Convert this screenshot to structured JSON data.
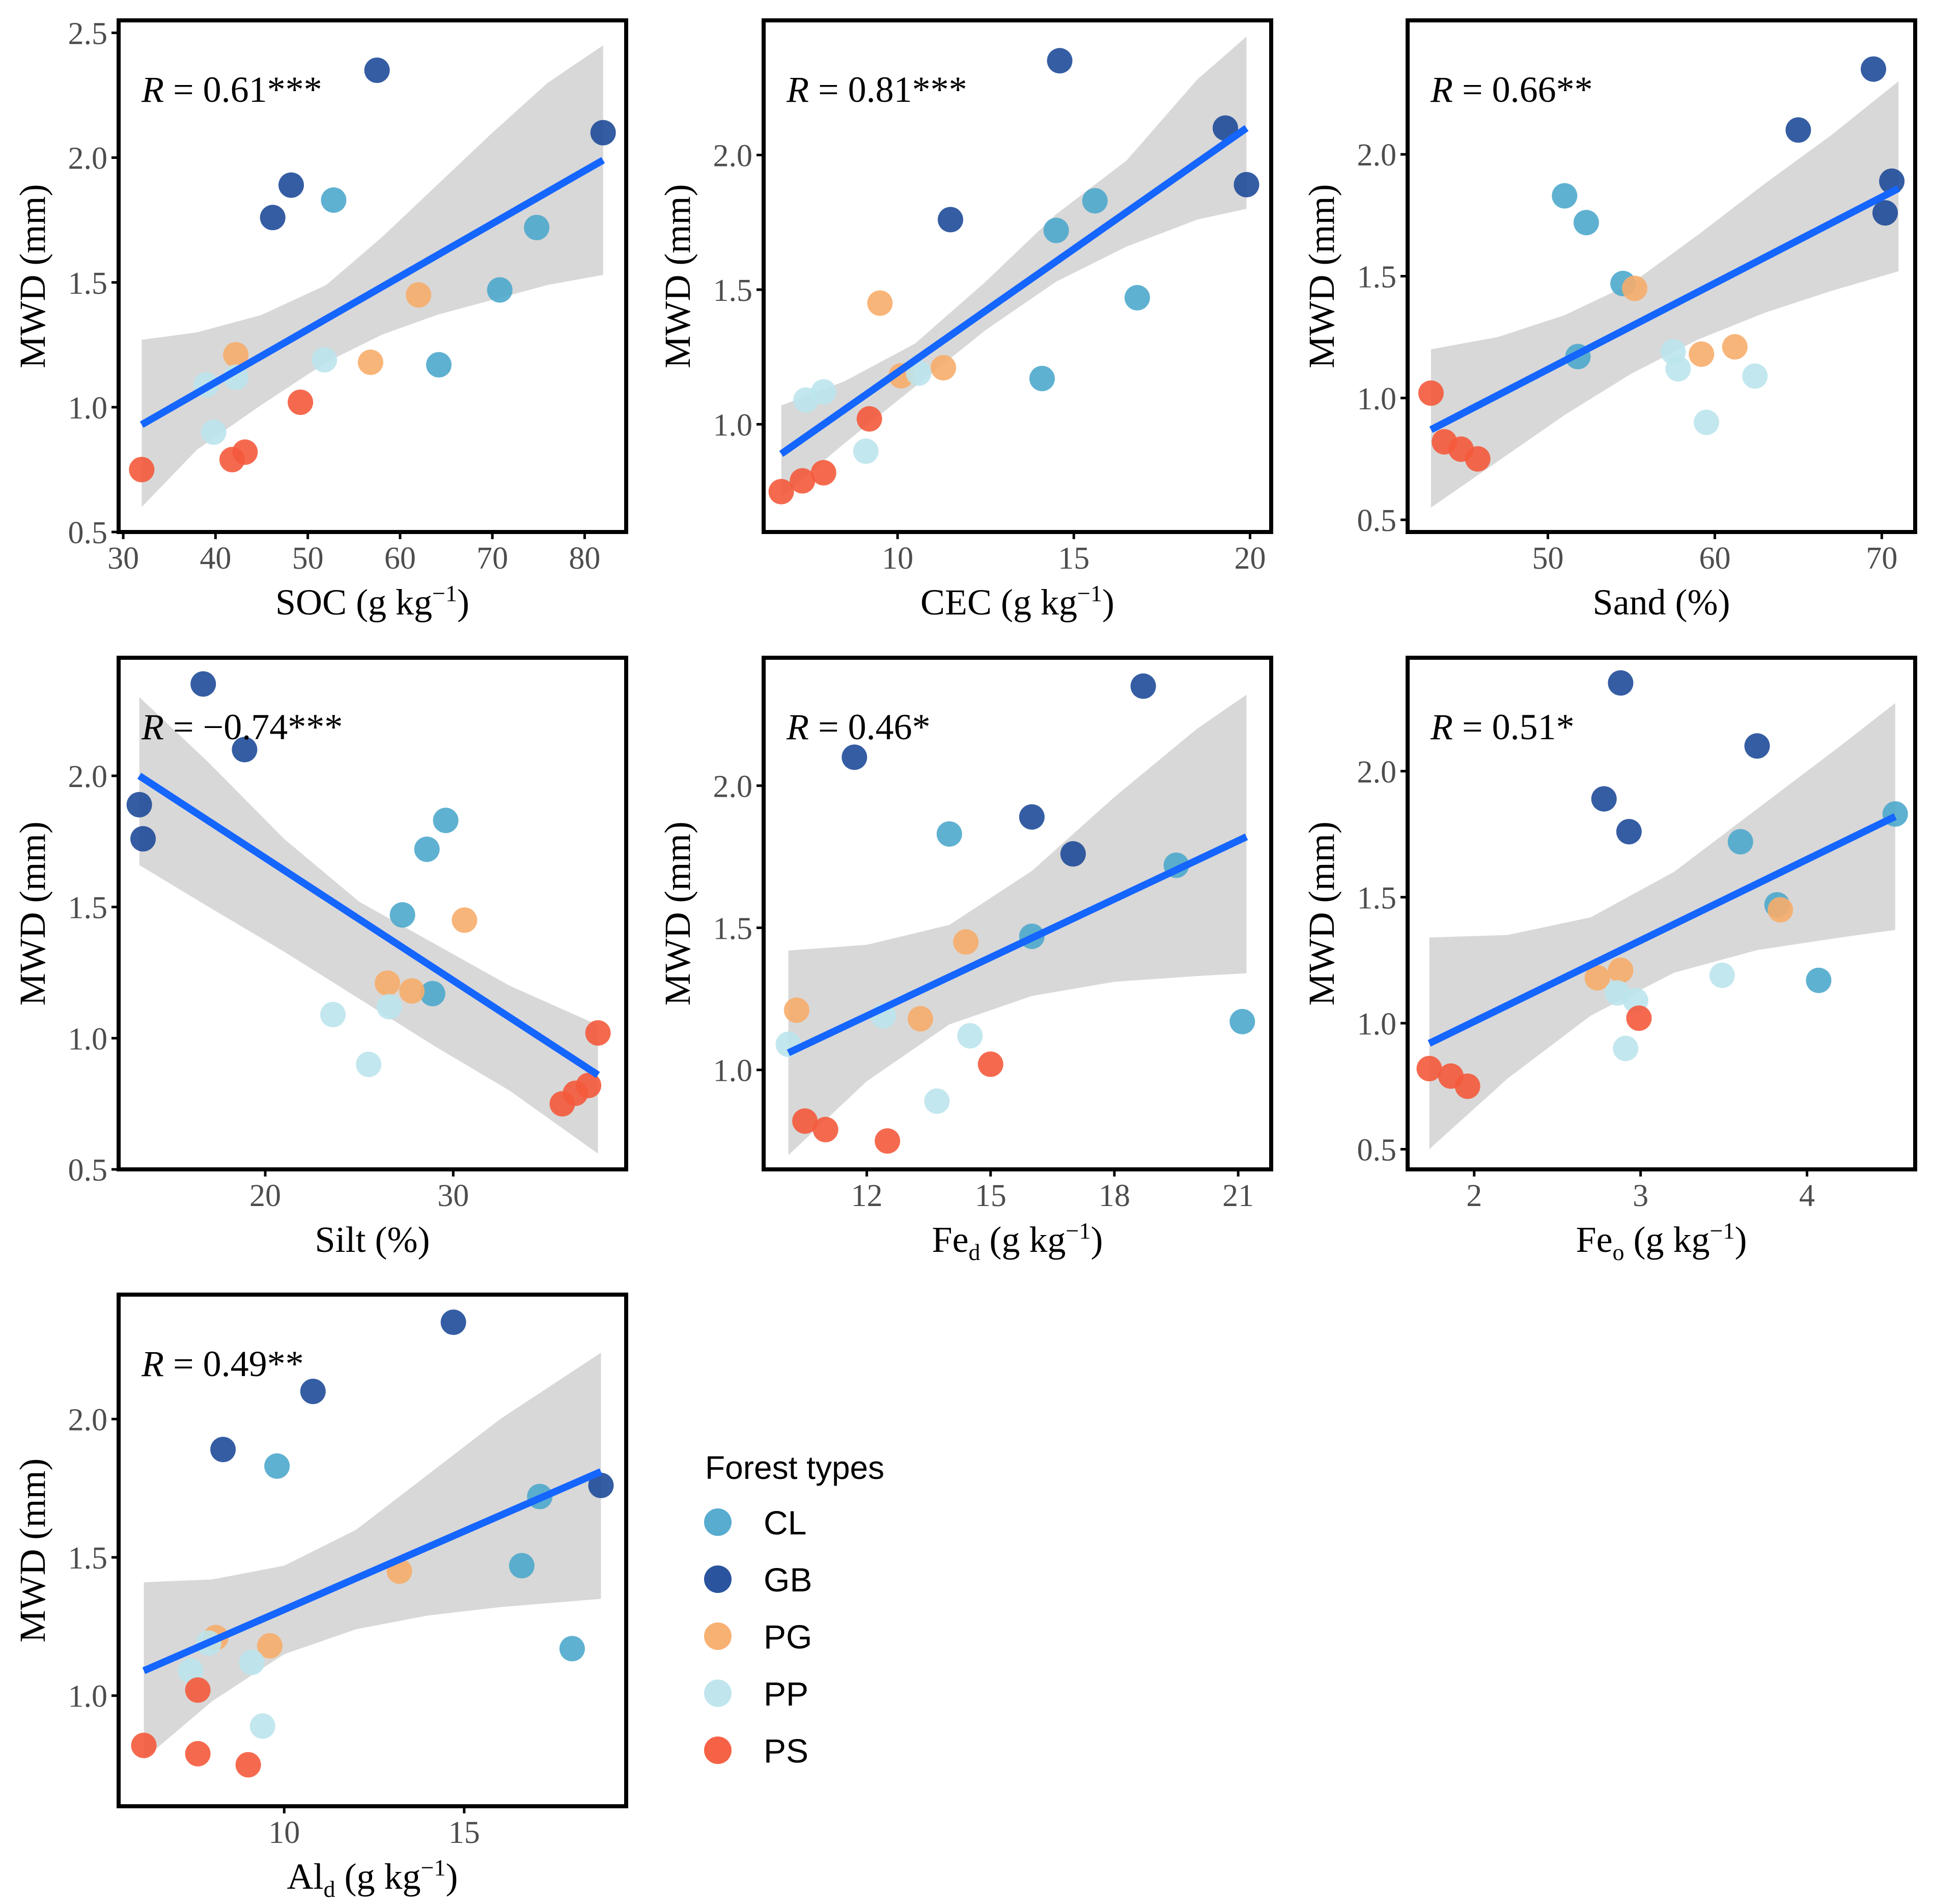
{
  "legend": {
    "title": "Forest types",
    "items": [
      {
        "label": "CL",
        "color": "#4ea8cc"
      },
      {
        "label": "GB",
        "color": "#1f4b99"
      },
      {
        "label": "PG",
        "color": "#f7ad6b"
      },
      {
        "label": "PP",
        "color": "#bde4ec"
      },
      {
        "label": "PS",
        "color": "#f45a3c"
      }
    ]
  },
  "colors": {
    "line": "#1565ff",
    "band": "#d6d6d6",
    "axis": "#000000",
    "tick_text": "#4d4d4d"
  },
  "chart_data": [
    {
      "type": "scatter",
      "id": "soc",
      "xlabel": "SOC (g kg",
      "xlabel_sup": "−1",
      "xlabel_end": ")",
      "ylabel": "MWD (mm)",
      "annotation_prefix": "R",
      "annotation": " = 0.61***",
      "xlim": [
        29.5,
        84.5
      ],
      "ylim": [
        0.5,
        2.55
      ],
      "xticks": [
        30,
        40,
        50,
        60,
        70,
        80
      ],
      "yticks": [
        0.5,
        1.0,
        1.5,
        2.0,
        2.5
      ],
      "fit": {
        "x": [
          32,
          82
        ],
        "y": [
          0.93,
          1.99
        ]
      },
      "band": {
        "x": [
          32,
          38,
          45,
          52,
          58,
          64,
          70,
          76,
          82
        ],
        "lower": [
          0.6,
          0.83,
          1.01,
          1.18,
          1.29,
          1.37,
          1.43,
          1.49,
          1.53
        ],
        "upper": [
          1.27,
          1.3,
          1.37,
          1.49,
          1.68,
          1.89,
          2.1,
          2.3,
          2.45
        ]
      },
      "points": [
        {
          "x": 57.5,
          "y": 2.35,
          "g": "GB"
        },
        {
          "x": 82.0,
          "y": 2.1,
          "g": "GB"
        },
        {
          "x": 48.2,
          "y": 1.89,
          "g": "GB"
        },
        {
          "x": 46.2,
          "y": 1.76,
          "g": "GB"
        },
        {
          "x": 52.8,
          "y": 1.83,
          "g": "CL"
        },
        {
          "x": 74.8,
          "y": 1.72,
          "g": "CL"
        },
        {
          "x": 70.8,
          "y": 1.47,
          "g": "CL"
        },
        {
          "x": 64.2,
          "y": 1.17,
          "g": "CL"
        },
        {
          "x": 62.0,
          "y": 1.45,
          "g": "PG"
        },
        {
          "x": 42.2,
          "y": 1.21,
          "g": "PG"
        },
        {
          "x": 56.8,
          "y": 1.18,
          "g": "PG"
        },
        {
          "x": 51.8,
          "y": 1.19,
          "g": "PP"
        },
        {
          "x": 39.0,
          "y": 1.09,
          "g": "PP"
        },
        {
          "x": 42.2,
          "y": 1.12,
          "g": "PP"
        },
        {
          "x": 39.8,
          "y": 0.9,
          "g": "PP"
        },
        {
          "x": 49.2,
          "y": 1.02,
          "g": "PS"
        },
        {
          "x": 43.2,
          "y": 0.82,
          "g": "PS"
        },
        {
          "x": 41.8,
          "y": 0.79,
          "g": "PS"
        },
        {
          "x": 32.0,
          "y": 0.75,
          "g": "PS"
        }
      ]
    },
    {
      "type": "scatter",
      "id": "cec",
      "xlabel": "CEC (g kg",
      "xlabel_sup": "−1",
      "xlabel_end": ")",
      "ylabel": "MWD (mm)",
      "annotation_prefix": "R",
      "annotation": " = 0.81***",
      "xlim": [
        6.2,
        20.6
      ],
      "ylim": [
        0.6,
        2.5
      ],
      "xticks": [
        10,
        15,
        20
      ],
      "yticks": [
        1.0,
        1.5,
        2.0
      ],
      "fit": {
        "x": [
          6.7,
          19.9
        ],
        "y": [
          0.89,
          2.1
        ]
      },
      "band": {
        "x": [
          6.7,
          8.5,
          10.5,
          12.5,
          14.5,
          16.5,
          18.5,
          19.9
        ],
        "lower": [
          0.73,
          0.93,
          1.14,
          1.35,
          1.53,
          1.66,
          1.76,
          1.8
        ],
        "upper": [
          1.07,
          1.16,
          1.3,
          1.53,
          1.78,
          1.98,
          2.28,
          2.44
        ]
      },
      "points": [
        {
          "x": 14.6,
          "y": 2.35,
          "g": "GB"
        },
        {
          "x": 19.3,
          "y": 2.1,
          "g": "GB"
        },
        {
          "x": 19.9,
          "y": 1.89,
          "g": "GB"
        },
        {
          "x": 11.5,
          "y": 1.76,
          "g": "GB"
        },
        {
          "x": 15.6,
          "y": 1.83,
          "g": "CL"
        },
        {
          "x": 14.5,
          "y": 1.72,
          "g": "CL"
        },
        {
          "x": 16.8,
          "y": 1.47,
          "g": "CL"
        },
        {
          "x": 14.1,
          "y": 1.17,
          "g": "CL"
        },
        {
          "x": 9.5,
          "y": 1.45,
          "g": "PG"
        },
        {
          "x": 11.3,
          "y": 1.21,
          "g": "PG"
        },
        {
          "x": 10.1,
          "y": 1.18,
          "g": "PG"
        },
        {
          "x": 10.6,
          "y": 1.19,
          "g": "PP"
        },
        {
          "x": 7.4,
          "y": 1.09,
          "g": "PP"
        },
        {
          "x": 7.9,
          "y": 1.12,
          "g": "PP"
        },
        {
          "x": 9.1,
          "y": 0.9,
          "g": "PP"
        },
        {
          "x": 9.2,
          "y": 1.02,
          "g": "PS"
        },
        {
          "x": 7.9,
          "y": 0.82,
          "g": "PS"
        },
        {
          "x": 7.3,
          "y": 0.79,
          "g": "PS"
        },
        {
          "x": 6.7,
          "y": 0.75,
          "g": "PS"
        }
      ]
    },
    {
      "type": "scatter",
      "id": "sand",
      "xlabel": "Sand (%)",
      "xlabel_sup": "",
      "xlabel_end": "",
      "ylabel": "MWD (mm)",
      "annotation_prefix": "R",
      "annotation": " = 0.66**",
      "xlim": [
        41.6,
        72.0
      ],
      "ylim": [
        0.45,
        2.55
      ],
      "xticks": [
        50,
        60,
        70
      ],
      "yticks": [
        0.5,
        1.0,
        1.5,
        2.0
      ],
      "fit": {
        "x": [
          43,
          71
        ],
        "y": [
          0.87,
          1.86
        ]
      },
      "band": {
        "x": [
          43,
          47,
          51,
          55,
          59,
          63,
          67,
          71
        ],
        "lower": [
          0.55,
          0.74,
          0.93,
          1.1,
          1.24,
          1.35,
          1.44,
          1.52
        ],
        "upper": [
          1.2,
          1.25,
          1.34,
          1.47,
          1.67,
          1.88,
          2.08,
          2.3
        ]
      },
      "points": [
        {
          "x": 69.5,
          "y": 2.35,
          "g": "GB"
        },
        {
          "x": 65.0,
          "y": 2.1,
          "g": "GB"
        },
        {
          "x": 70.6,
          "y": 1.89,
          "g": "GB"
        },
        {
          "x": 70.2,
          "y": 1.76,
          "g": "GB"
        },
        {
          "x": 51.0,
          "y": 1.83,
          "g": "CL"
        },
        {
          "x": 52.3,
          "y": 1.72,
          "g": "CL"
        },
        {
          "x": 54.5,
          "y": 1.47,
          "g": "CL"
        },
        {
          "x": 51.8,
          "y": 1.17,
          "g": "CL"
        },
        {
          "x": 55.2,
          "y": 1.45,
          "g": "PG"
        },
        {
          "x": 61.2,
          "y": 1.21,
          "g": "PG"
        },
        {
          "x": 59.2,
          "y": 1.18,
          "g": "PG"
        },
        {
          "x": 57.5,
          "y": 1.19,
          "g": "PP"
        },
        {
          "x": 62.4,
          "y": 1.09,
          "g": "PP"
        },
        {
          "x": 57.8,
          "y": 1.12,
          "g": "PP"
        },
        {
          "x": 59.5,
          "y": 0.9,
          "g": "PP"
        },
        {
          "x": 43.0,
          "y": 1.02,
          "g": "PS"
        },
        {
          "x": 43.8,
          "y": 0.82,
          "g": "PS"
        },
        {
          "x": 44.8,
          "y": 0.79,
          "g": "PS"
        },
        {
          "x": 45.8,
          "y": 0.75,
          "g": "PS"
        }
      ]
    },
    {
      "type": "scatter",
      "id": "silt",
      "xlabel": "Silt (%)",
      "xlabel_sup": "",
      "xlabel_end": "",
      "ylabel": "MWD (mm)",
      "annotation_prefix": "R",
      "annotation": " = −0.74***",
      "xlim": [
        12.2,
        39.2
      ],
      "ylim": [
        0.5,
        2.45
      ],
      "xticks": [
        20,
        30
      ],
      "yticks": [
        0.5,
        1.0,
        1.5,
        2.0
      ],
      "fit": {
        "x": [
          13.3,
          37.7
        ],
        "y": [
          2.0,
          0.86
        ]
      },
      "band": {
        "x": [
          13.3,
          17,
          21,
          25,
          29,
          33,
          37.7
        ],
        "lower": [
          1.66,
          1.5,
          1.33,
          1.15,
          0.97,
          0.8,
          0.56
        ],
        "upper": [
          2.3,
          2.05,
          1.76,
          1.52,
          1.36,
          1.2,
          1.05
        ]
      },
      "points": [
        {
          "x": 16.7,
          "y": 2.35,
          "g": "GB"
        },
        {
          "x": 18.9,
          "y": 2.1,
          "g": "GB"
        },
        {
          "x": 13.3,
          "y": 1.89,
          "g": "GB"
        },
        {
          "x": 13.5,
          "y": 1.76,
          "g": "GB"
        },
        {
          "x": 29.6,
          "y": 1.83,
          "g": "CL"
        },
        {
          "x": 28.6,
          "y": 1.72,
          "g": "CL"
        },
        {
          "x": 27.3,
          "y": 1.47,
          "g": "CL"
        },
        {
          "x": 28.9,
          "y": 1.17,
          "g": "CL"
        },
        {
          "x": 30.6,
          "y": 1.45,
          "g": "PG"
        },
        {
          "x": 26.5,
          "y": 1.21,
          "g": "PG"
        },
        {
          "x": 27.8,
          "y": 1.18,
          "g": "PG"
        },
        {
          "x": 26.6,
          "y": 1.12,
          "g": "PP"
        },
        {
          "x": 23.6,
          "y": 1.09,
          "g": "PP"
        },
        {
          "x": 25.5,
          "y": 0.9,
          "g": "PP"
        },
        {
          "x": 37.7,
          "y": 1.02,
          "g": "PS"
        },
        {
          "x": 37.2,
          "y": 0.82,
          "g": "PS"
        },
        {
          "x": 36.5,
          "y": 0.79,
          "g": "PS"
        },
        {
          "x": 35.8,
          "y": 0.75,
          "g": "PS"
        }
      ]
    },
    {
      "type": "scatter",
      "id": "fed",
      "xlabel": "Fe",
      "xlabel_sub": "d",
      "xlabel_rest": " (g kg",
      "xlabel_sup": "−1",
      "xlabel_end": ")",
      "ylabel": "MWD (mm)",
      "annotation_prefix": "R",
      "annotation": " = 0.46*",
      "xlim": [
        9.5,
        21.8
      ],
      "ylim": [
        0.65,
        2.45
      ],
      "xticks": [
        12,
        15,
        18,
        21
      ],
      "yticks": [
        1.0,
        1.5,
        2.0
      ],
      "fit": {
        "x": [
          10.1,
          21.2
        ],
        "y": [
          1.06,
          1.82
        ]
      },
      "band": {
        "x": [
          10.1,
          12,
          14,
          16,
          18,
          20,
          21.2
        ],
        "lower": [
          0.7,
          0.96,
          1.16,
          1.26,
          1.31,
          1.33,
          1.34
        ],
        "upper": [
          1.42,
          1.44,
          1.51,
          1.7,
          1.96,
          2.2,
          2.32
        ]
      },
      "points": [
        {
          "x": 18.7,
          "y": 2.35,
          "g": "GB"
        },
        {
          "x": 11.7,
          "y": 2.1,
          "g": "GB"
        },
        {
          "x": 16.0,
          "y": 1.89,
          "g": "GB"
        },
        {
          "x": 17.0,
          "y": 1.76,
          "g": "GB"
        },
        {
          "x": 14.0,
          "y": 1.83,
          "g": "CL"
        },
        {
          "x": 19.5,
          "y": 1.72,
          "g": "CL"
        },
        {
          "x": 16.0,
          "y": 1.47,
          "g": "CL"
        },
        {
          "x": 21.1,
          "y": 1.17,
          "g": "CL"
        },
        {
          "x": 14.4,
          "y": 1.45,
          "g": "PG"
        },
        {
          "x": 10.3,
          "y": 1.21,
          "g": "PG"
        },
        {
          "x": 13.3,
          "y": 1.18,
          "g": "PG"
        },
        {
          "x": 12.4,
          "y": 1.19,
          "g": "PP"
        },
        {
          "x": 10.1,
          "y": 1.09,
          "g": "PP"
        },
        {
          "x": 14.5,
          "y": 1.12,
          "g": "PP"
        },
        {
          "x": 13.7,
          "y": 0.89,
          "g": "PP"
        },
        {
          "x": 15.0,
          "y": 1.02,
          "g": "PS"
        },
        {
          "x": 10.5,
          "y": 0.82,
          "g": "PS"
        },
        {
          "x": 11.0,
          "y": 0.79,
          "g": "PS"
        },
        {
          "x": 12.5,
          "y": 0.75,
          "g": "PS"
        }
      ]
    },
    {
      "type": "scatter",
      "id": "feo",
      "xlabel": "Fe",
      "xlabel_sub": "o",
      "xlabel_rest": " (g kg",
      "xlabel_sup": "−1",
      "xlabel_end": ")",
      "ylabel": "MWD (mm)",
      "annotation_prefix": "R",
      "annotation": " = 0.51*",
      "xlim": [
        1.6,
        4.65
      ],
      "ylim": [
        0.42,
        2.45
      ],
      "xticks": [
        2,
        3,
        4
      ],
      "yticks": [
        0.5,
        1.0,
        1.5,
        2.0
      ],
      "fit": {
        "x": [
          1.73,
          4.53
        ],
        "y": [
          0.92,
          1.82
        ]
      },
      "band": {
        "x": [
          1.73,
          2.2,
          2.7,
          3.2,
          3.7,
          4.2,
          4.53
        ],
        "lower": [
          0.5,
          0.78,
          1.03,
          1.2,
          1.29,
          1.34,
          1.37
        ],
        "upper": [
          1.34,
          1.35,
          1.42,
          1.6,
          1.85,
          2.1,
          2.27
        ]
      },
      "points": [
        {
          "x": 2.88,
          "y": 2.35,
          "g": "GB"
        },
        {
          "x": 3.7,
          "y": 2.1,
          "g": "GB"
        },
        {
          "x": 2.78,
          "y": 1.89,
          "g": "GB"
        },
        {
          "x": 2.93,
          "y": 1.76,
          "g": "GB"
        },
        {
          "x": 4.53,
          "y": 1.83,
          "g": "CL"
        },
        {
          "x": 3.6,
          "y": 1.72,
          "g": "CL"
        },
        {
          "x": 3.82,
          "y": 1.47,
          "g": "CL"
        },
        {
          "x": 4.07,
          "y": 1.17,
          "g": "CL"
        },
        {
          "x": 3.84,
          "y": 1.45,
          "g": "PG"
        },
        {
          "x": 2.88,
          "y": 1.21,
          "g": "PG"
        },
        {
          "x": 2.74,
          "y": 1.18,
          "g": "PG"
        },
        {
          "x": 3.49,
          "y": 1.19,
          "g": "PP"
        },
        {
          "x": 2.97,
          "y": 1.09,
          "g": "PP"
        },
        {
          "x": 2.86,
          "y": 1.12,
          "g": "PP"
        },
        {
          "x": 2.91,
          "y": 0.9,
          "g": "PP"
        },
        {
          "x": 2.99,
          "y": 1.02,
          "g": "PS"
        },
        {
          "x": 1.73,
          "y": 0.82,
          "g": "PS"
        },
        {
          "x": 1.86,
          "y": 0.79,
          "g": "PS"
        },
        {
          "x": 1.96,
          "y": 0.75,
          "g": "PS"
        }
      ]
    },
    {
      "type": "scatter",
      "id": "ald",
      "xlabel": "Al",
      "xlabel_sub": "d",
      "xlabel_rest": " (g kg",
      "xlabel_sup": "−1",
      "xlabel_end": ")",
      "ylabel": "MWD (mm)",
      "annotation_prefix": "R",
      "annotation": " = 0.49**",
      "xlim": [
        5.4,
        19.5
      ],
      "ylim": [
        0.6,
        2.45
      ],
      "xticks": [
        10,
        15
      ],
      "yticks": [
        1.0,
        1.5,
        2.0
      ],
      "fit": {
        "x": [
          6.1,
          18.8
        ],
        "y": [
          1.09,
          1.81
        ]
      },
      "band": {
        "x": [
          6.1,
          8,
          10,
          12,
          14,
          16,
          18.8
        ],
        "lower": [
          0.77,
          0.98,
          1.15,
          1.24,
          1.29,
          1.32,
          1.35
        ],
        "upper": [
          1.41,
          1.42,
          1.47,
          1.6,
          1.8,
          2.0,
          2.24
        ]
      },
      "points": [
        {
          "x": 14.7,
          "y": 2.35,
          "g": "GB"
        },
        {
          "x": 10.8,
          "y": 2.1,
          "g": "GB"
        },
        {
          "x": 8.3,
          "y": 1.89,
          "g": "GB"
        },
        {
          "x": 18.8,
          "y": 1.76,
          "g": "GB"
        },
        {
          "x": 9.8,
          "y": 1.83,
          "g": "CL"
        },
        {
          "x": 17.1,
          "y": 1.72,
          "g": "CL"
        },
        {
          "x": 16.6,
          "y": 1.47,
          "g": "CL"
        },
        {
          "x": 18.0,
          "y": 1.17,
          "g": "CL"
        },
        {
          "x": 13.2,
          "y": 1.45,
          "g": "PG"
        },
        {
          "x": 8.1,
          "y": 1.21,
          "g": "PG"
        },
        {
          "x": 9.6,
          "y": 1.18,
          "g": "PG"
        },
        {
          "x": 7.9,
          "y": 1.19,
          "g": "PP"
        },
        {
          "x": 7.4,
          "y": 1.09,
          "g": "PP"
        },
        {
          "x": 9.1,
          "y": 1.12,
          "g": "PP"
        },
        {
          "x": 9.4,
          "y": 0.89,
          "g": "PP"
        },
        {
          "x": 7.6,
          "y": 1.02,
          "g": "PS"
        },
        {
          "x": 6.1,
          "y": 0.82,
          "g": "PS"
        },
        {
          "x": 7.6,
          "y": 0.79,
          "g": "PS"
        },
        {
          "x": 9.0,
          "y": 0.75,
          "g": "PS"
        }
      ]
    }
  ]
}
